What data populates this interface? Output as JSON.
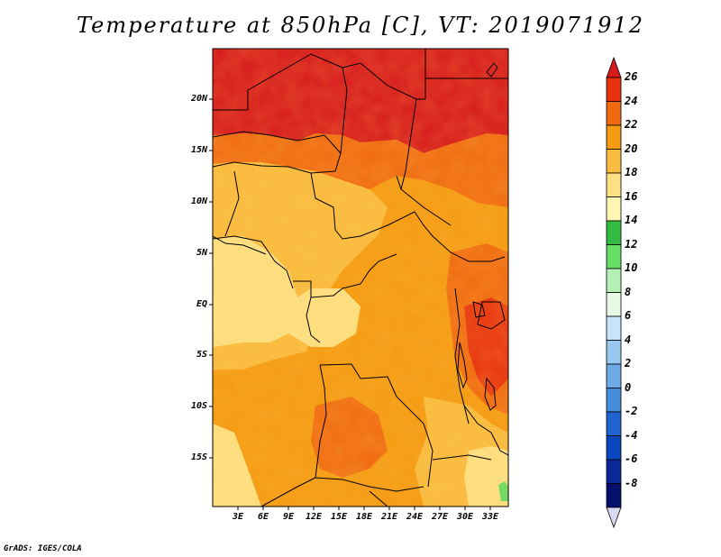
{
  "title": "Temperature at 850hPa [C], VT: 2019071912",
  "credit": "GrADS: IGES/COLA",
  "map": {
    "lat_labels": [
      "20N",
      "15N",
      "10N",
      "5N",
      "EQ",
      "5S",
      "10S",
      "15S"
    ],
    "lon_labels": [
      "3E",
      "6E",
      "9E",
      "12E",
      "15E",
      "18E",
      "21E",
      "24E",
      "27E",
      "30E",
      "33E"
    ]
  },
  "colorbar": {
    "labels": [
      "26",
      "24",
      "22",
      "20",
      "18",
      "16",
      "14",
      "12",
      "10",
      "8",
      "6",
      "4",
      "2",
      "0",
      "-2",
      "-4",
      "-6",
      "-8"
    ],
    "colors": [
      "#d7191c",
      "#e8320e",
      "#f06a10",
      "#f59a12",
      "#f9bb3f",
      "#fde084",
      "#fff5b4",
      "#33bb44",
      "#66dd66",
      "#b4f0b4",
      "#e6fae6",
      "#c8e4f8",
      "#96c8f0",
      "#6eaae6",
      "#468cdc",
      "#2064d2",
      "#0a46be",
      "#0a2896",
      "#08106e",
      "#d9d9f3"
    ]
  }
}
